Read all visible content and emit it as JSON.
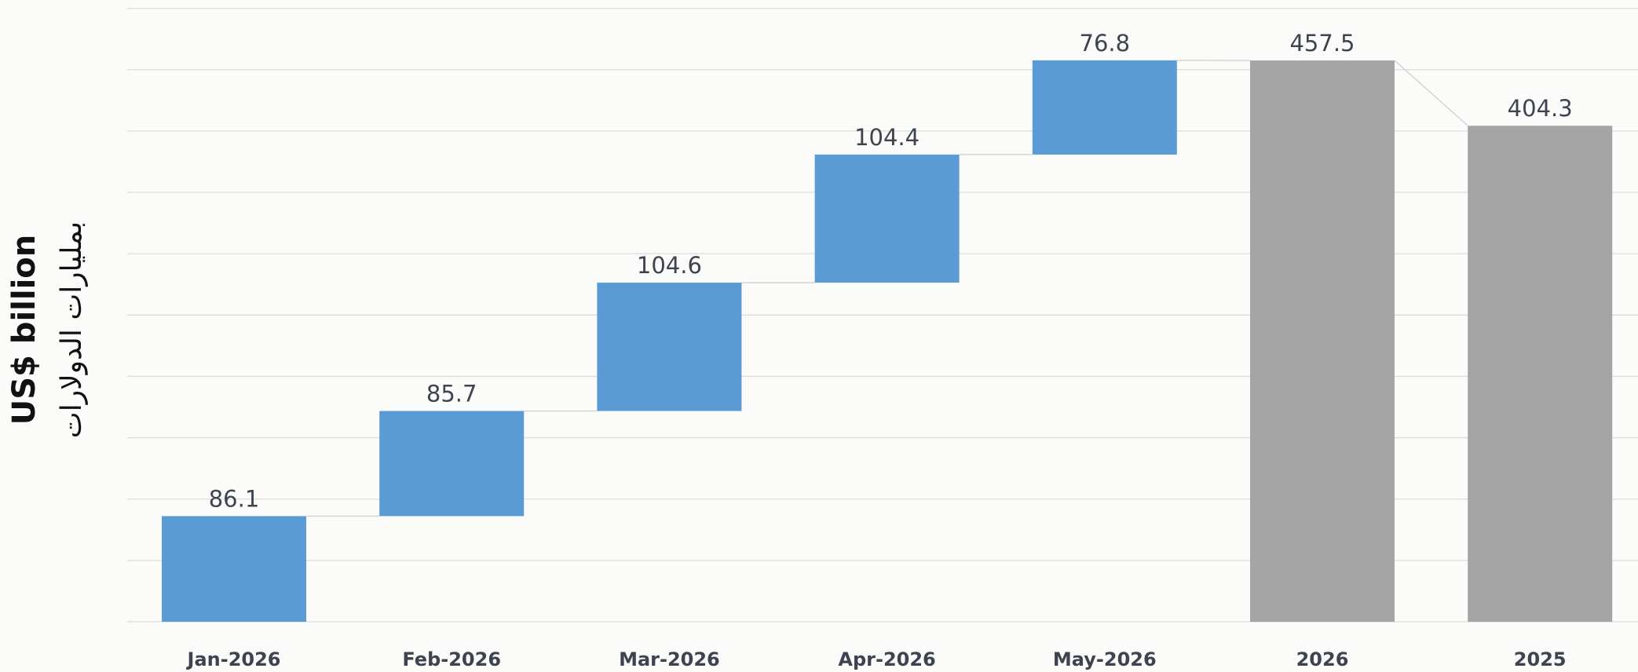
{
  "chart_data": {
    "type": "waterfall",
    "y_label": "US$ billion",
    "y_label_secondary": "بمليارات الدولارات",
    "categories": [
      "Jan-2026",
      "Feb-2026",
      "Mar-2026",
      "Apr-2026",
      "May-2026",
      "2026",
      "2025"
    ],
    "values": [
      86.1,
      85.7,
      104.6,
      104.4,
      76.8,
      457.5,
      404.3
    ],
    "measure": [
      "relative",
      "relative",
      "relative",
      "relative",
      "relative",
      "total",
      "total"
    ],
    "colors": [
      "#5b9bd5",
      "#5b9bd5",
      "#5b9bd5",
      "#5b9bd5",
      "#5b9bd5",
      "#a5a5a5",
      "#a5a5a5"
    ],
    "ylim": [
      0,
      500
    ],
    "yticks": [
      0,
      50,
      100,
      150,
      200,
      250,
      300,
      350,
      400,
      450,
      500
    ],
    "grid": true
  }
}
